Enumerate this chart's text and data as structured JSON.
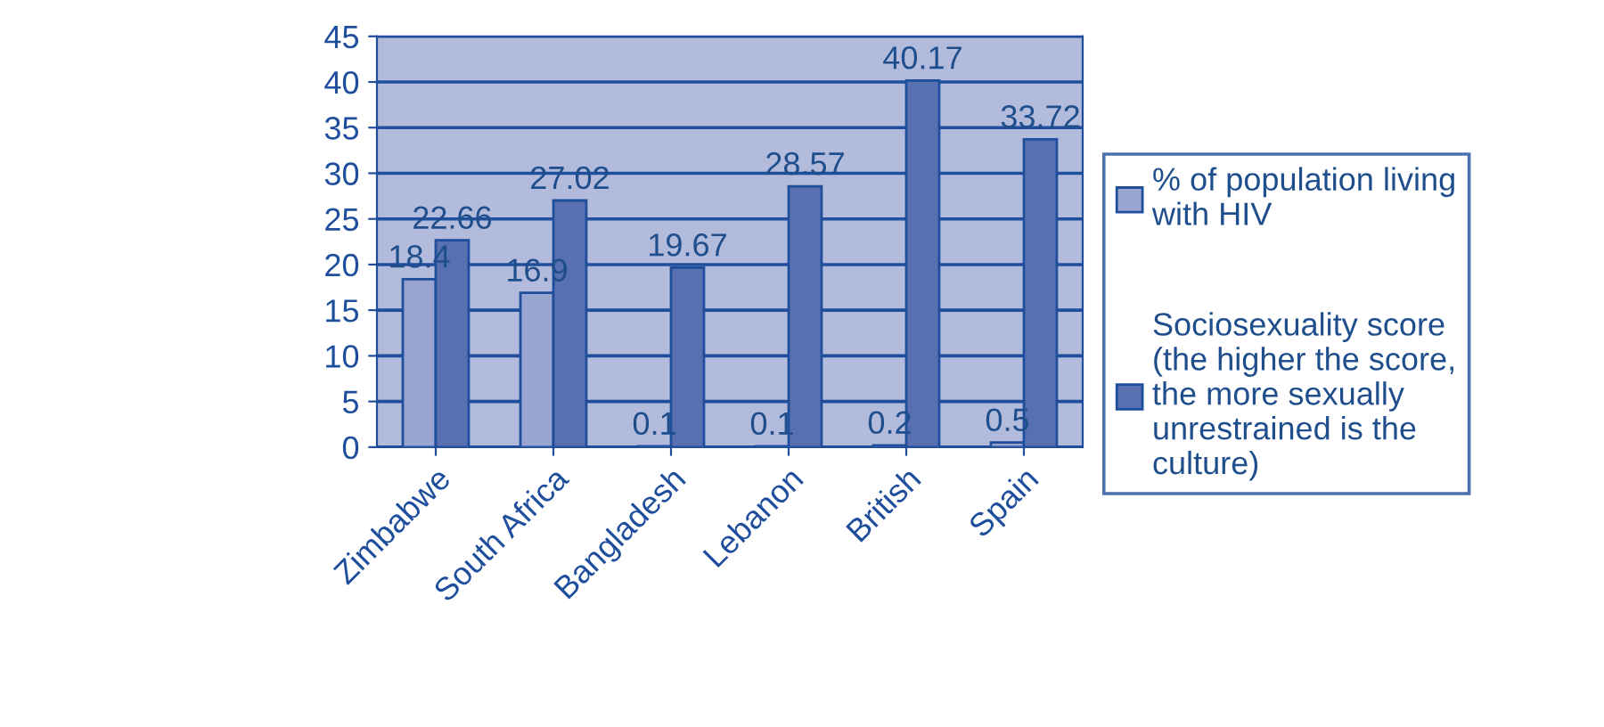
{
  "chart_data": {
    "type": "bar",
    "categories": [
      "Zimbabwe",
      "South Africa",
      "Bangladesh",
      "Lebanon",
      "British",
      "Spain"
    ],
    "series": [
      {
        "name": "% of population living\nwith HIV",
        "color": "#97a5d0",
        "values": [
          18.4,
          16.9,
          0.1,
          0.1,
          0.2,
          0.5
        ]
      },
      {
        "name": "Sociosexuality score\n(the higher the score,\nthe more sexually\nunrestrained is the\nculture)",
        "color": "#5670b0",
        "values": [
          22.66,
          27.02,
          19.67,
          28.57,
          40.17,
          33.72
        ]
      }
    ],
    "ylim": [
      0,
      45
    ],
    "yticks": [
      0,
      5,
      10,
      15,
      20,
      25,
      30,
      35,
      40,
      45
    ],
    "grid": "y",
    "legend": "right",
    "data_labels": true
  }
}
